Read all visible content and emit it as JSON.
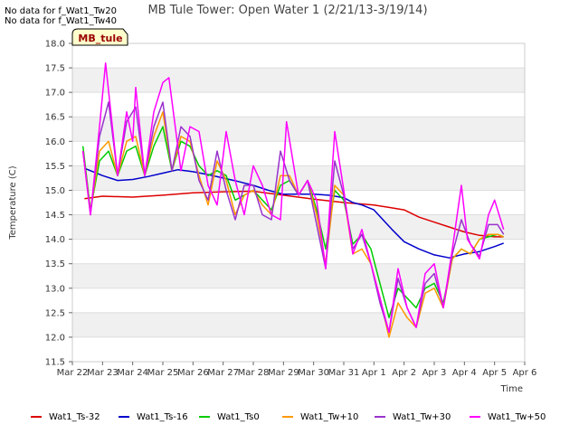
{
  "notices": [
    "No data for f_Wat1_Tw20",
    "No data for f_Wat1_Tw40"
  ],
  "site_tag": "MB_tule",
  "chart_data": {
    "type": "line",
    "title": "MB Tule Tower: Open Water 1 (2/21/13-3/19/14)",
    "xlabel": "Time",
    "ylabel": "Temperature (C)",
    "ylim": [
      11.5,
      18.0
    ],
    "yticks": [
      11.5,
      12.0,
      12.5,
      13.0,
      13.5,
      14.0,
      14.5,
      15.0,
      15.5,
      16.0,
      16.5,
      17.0,
      17.5,
      18.0
    ],
    "ytick_labels": [
      "11.5",
      "12.0",
      "12.5",
      "13.0",
      "13.5",
      "14.0",
      "14.5",
      "15.0",
      "15.5",
      "16.0",
      "16.5",
      "17.0",
      "17.5",
      "18.0"
    ],
    "xlim": [
      0,
      15
    ],
    "xticks": [
      0,
      1,
      2,
      3,
      4,
      5,
      6,
      7,
      8,
      9,
      10,
      11,
      12,
      13,
      14,
      15
    ],
    "xtick_labels": [
      "Mar 22",
      "Mar 23",
      "Mar 24",
      "Mar 25",
      "Mar 26",
      "Mar 27",
      "Mar 28",
      "Mar 29",
      "Mar 30",
      "Mar 31",
      "Apr 1",
      "Apr 2",
      "Apr 3",
      "Apr 4",
      "Apr 5",
      "Apr 6"
    ],
    "grid": "horizontal-bands",
    "legend_position": "bottom",
    "series": [
      {
        "name": "Wat1_Ts-32",
        "color": "#dd0000",
        "x": [
          0.4,
          1,
          2,
          3,
          4,
          5,
          6,
          7,
          8,
          9,
          9.6,
          10,
          10.5,
          11,
          11.5,
          12,
          12.5,
          13,
          13.5,
          14,
          14.3
        ],
        "y": [
          14.83,
          14.88,
          14.86,
          14.9,
          14.95,
          14.97,
          14.98,
          14.9,
          14.82,
          14.75,
          14.72,
          14.7,
          14.65,
          14.6,
          14.45,
          14.35,
          14.25,
          14.15,
          14.08,
          14.05,
          14.05
        ]
      },
      {
        "name": "Wat1_Ts-16",
        "color": "#0000cc",
        "x": [
          0.4,
          1,
          1.5,
          2,
          2.5,
          3,
          3.5,
          4,
          4.5,
          5,
          5.5,
          6,
          6.5,
          7,
          7.5,
          8,
          8.5,
          9,
          9.3,
          9.6,
          10,
          10.3,
          10.6,
          11,
          11.5,
          12,
          12.5,
          13,
          13.5,
          14,
          14.3
        ],
        "y": [
          15.45,
          15.3,
          15.2,
          15.22,
          15.28,
          15.35,
          15.42,
          15.38,
          15.32,
          15.25,
          15.18,
          15.1,
          15.0,
          14.92,
          14.92,
          14.92,
          14.9,
          14.85,
          14.75,
          14.7,
          14.6,
          14.4,
          14.2,
          13.95,
          13.8,
          13.68,
          13.62,
          13.7,
          13.75,
          13.85,
          13.92
        ]
      },
      {
        "name": "Wat1_Ts0",
        "color": "#00cc00",
        "x": [
          0.35,
          0.6,
          0.9,
          1.2,
          1.5,
          1.8,
          2.1,
          2.4,
          2.7,
          3.0,
          3.3,
          3.6,
          3.9,
          4.2,
          4.5,
          4.8,
          5.1,
          5.4,
          5.7,
          6.0,
          6.3,
          6.6,
          6.9,
          7.2,
          7.5,
          7.8,
          8.1,
          8.4,
          8.7,
          9.0,
          9.3,
          9.6,
          9.9,
          10.2,
          10.5,
          10.8,
          11.1,
          11.4,
          11.7,
          12.0,
          12.3,
          12.6,
          12.9,
          13.2,
          13.5,
          13.8,
          14.1,
          14.3
        ],
        "y": [
          15.9,
          14.6,
          15.6,
          15.8,
          15.3,
          15.8,
          15.9,
          15.3,
          15.9,
          16.3,
          15.4,
          16.0,
          15.9,
          15.5,
          15.3,
          15.4,
          15.3,
          14.8,
          14.9,
          15.0,
          14.8,
          14.6,
          15.1,
          15.2,
          14.9,
          15.2,
          14.6,
          13.8,
          15.0,
          14.8,
          13.9,
          14.1,
          13.8,
          13.1,
          12.4,
          13.0,
          12.8,
          12.6,
          13.0,
          13.1,
          12.7,
          13.6,
          13.8,
          13.7,
          14.0,
          14.05,
          14.1,
          14.05
        ]
      },
      {
        "name": "Wat1_Tw+10",
        "color": "#ff9900",
        "x": [
          0.35,
          0.6,
          0.9,
          1.2,
          1.5,
          1.8,
          2.1,
          2.4,
          2.7,
          3.0,
          3.3,
          3.6,
          3.9,
          4.2,
          4.5,
          4.8,
          5.1,
          5.4,
          5.7,
          6.0,
          6.3,
          6.6,
          6.9,
          7.2,
          7.5,
          7.8,
          8.1,
          8.4,
          8.7,
          9.0,
          9.3,
          9.6,
          9.9,
          10.2,
          10.5,
          10.8,
          11.1,
          11.4,
          11.7,
          12.0,
          12.3,
          12.6,
          12.9,
          13.2,
          13.5,
          13.8,
          14.1,
          14.3
        ],
        "y": [
          15.8,
          14.55,
          15.8,
          16.0,
          15.3,
          16.0,
          16.1,
          15.3,
          16.1,
          16.6,
          15.4,
          16.1,
          16.0,
          15.3,
          14.7,
          15.6,
          15.2,
          14.5,
          14.9,
          15.0,
          14.7,
          14.5,
          15.3,
          15.3,
          14.9,
          15.2,
          14.5,
          13.5,
          15.1,
          14.9,
          13.7,
          13.8,
          13.5,
          12.8,
          12.0,
          12.7,
          12.4,
          12.2,
          12.9,
          13.0,
          12.6,
          13.6,
          13.8,
          13.7,
          14.0,
          14.1,
          14.1,
          14.05
        ]
      },
      {
        "name": "Wat1_Tw+30",
        "color": "#9933cc",
        "x": [
          0.35,
          0.6,
          0.9,
          1.2,
          1.5,
          1.8,
          2.1,
          2.4,
          2.7,
          3.0,
          3.3,
          3.6,
          3.9,
          4.2,
          4.5,
          4.8,
          5.1,
          5.4,
          5.7,
          6.0,
          6.3,
          6.6,
          6.9,
          7.2,
          7.5,
          7.8,
          8.1,
          8.4,
          8.7,
          9.0,
          9.3,
          9.6,
          9.9,
          10.2,
          10.5,
          10.8,
          11.1,
          11.4,
          11.7,
          12.0,
          12.3,
          12.6,
          12.9,
          13.2,
          13.5,
          13.8,
          14.1,
          14.3
        ],
        "y": [
          15.8,
          14.5,
          16.1,
          16.8,
          15.3,
          16.4,
          16.7,
          15.3,
          16.3,
          16.8,
          15.4,
          16.3,
          16.1,
          15.2,
          14.8,
          15.8,
          15.0,
          14.4,
          15.1,
          15.1,
          14.5,
          14.4,
          15.8,
          15.2,
          14.9,
          15.2,
          14.3,
          13.4,
          15.6,
          14.9,
          13.8,
          14.1,
          13.5,
          12.7,
          12.1,
          13.2,
          12.6,
          12.2,
          13.1,
          13.3,
          12.6,
          13.7,
          14.4,
          13.9,
          13.65,
          14.3,
          14.3,
          14.1
        ]
      },
      {
        "name": "Wat1_Tw+50",
        "color": "#ff00ff",
        "x": [
          0.35,
          0.6,
          0.9,
          1.1,
          1.5,
          1.8,
          2.0,
          2.1,
          2.4,
          2.7,
          3.0,
          3.2,
          3.6,
          3.9,
          4.2,
          4.5,
          4.8,
          5.1,
          5.4,
          5.7,
          6.0,
          6.3,
          6.6,
          6.9,
          7.1,
          7.5,
          7.8,
          8.1,
          8.4,
          8.7,
          9.0,
          9.3,
          9.6,
          9.9,
          10.2,
          10.5,
          10.8,
          11.1,
          11.4,
          11.7,
          12.0,
          12.3,
          12.6,
          12.9,
          13.1,
          13.5,
          13.8,
          14.0,
          14.3
        ],
        "y": [
          15.8,
          14.5,
          16.3,
          17.6,
          15.3,
          16.6,
          16.0,
          17.1,
          15.3,
          16.6,
          17.2,
          17.3,
          15.4,
          16.3,
          16.2,
          15.1,
          14.7,
          16.2,
          15.2,
          14.5,
          15.5,
          15.1,
          14.5,
          14.4,
          16.4,
          14.9,
          15.2,
          14.8,
          13.4,
          16.2,
          15.0,
          13.7,
          14.2,
          13.5,
          12.8,
          12.1,
          13.4,
          12.6,
          12.2,
          13.3,
          13.5,
          12.6,
          13.8,
          15.1,
          14.0,
          13.6,
          14.5,
          14.8,
          14.2
        ]
      }
    ]
  }
}
